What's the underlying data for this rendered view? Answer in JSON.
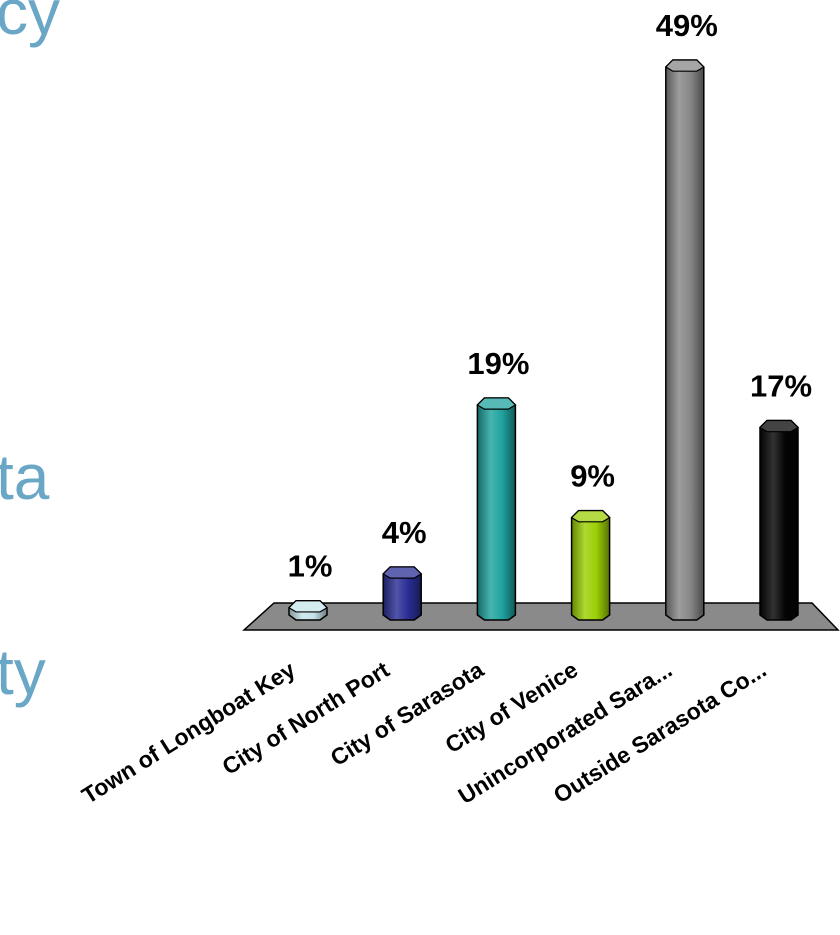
{
  "slide_text": [
    "cy",
    "ta",
    "ty"
  ],
  "chart_data": {
    "type": "bar",
    "style": "3d-cylinder",
    "categories": [
      "Town of Longboat Key",
      "City of North Port",
      "City of Sarasota",
      "City of Venice",
      "Unincorporated Sara...",
      "Outside Sarasota Co..."
    ],
    "values": [
      1,
      4,
      19,
      9,
      49,
      17
    ],
    "data_labels": [
      "1%",
      "4%",
      "19%",
      "9%",
      "49%",
      "17%"
    ],
    "unit": "%",
    "ylim": [
      0,
      49
    ],
    "grid": false,
    "legend": "none",
    "colors": [
      "#c6e4ea",
      "#2b2f95",
      "#1fa39e",
      "#9ccf05",
      "#878787",
      "#050505"
    ],
    "floor_color": "#8a8a8a"
  }
}
